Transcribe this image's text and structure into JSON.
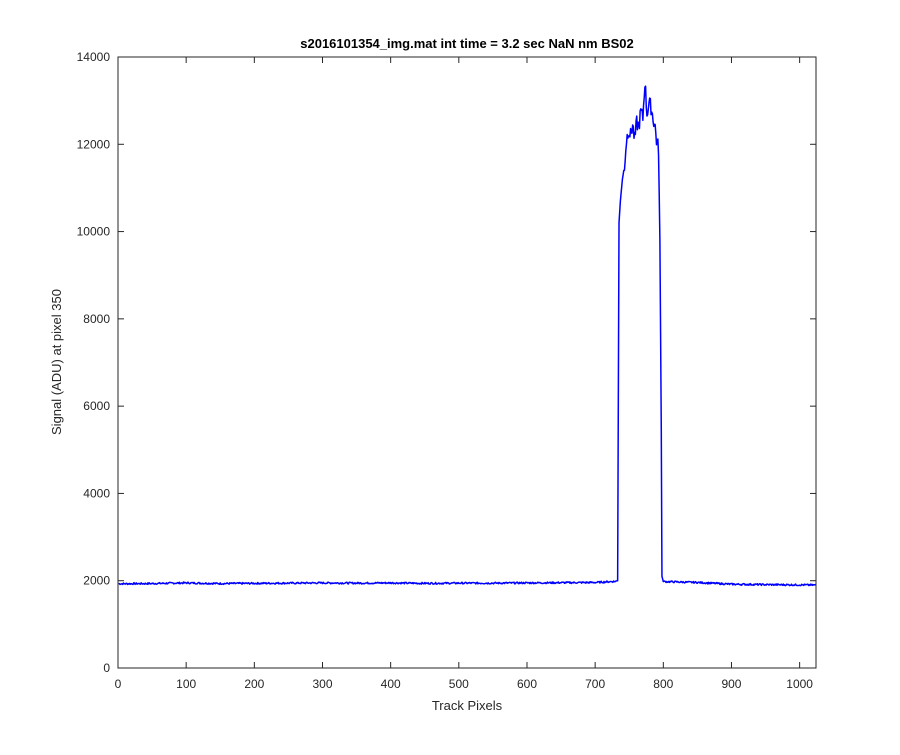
{
  "chart_data": {
    "type": "line",
    "title": "s2016101354_img.mat int time = 3.2 sec  NaN nm BS02",
    "xlabel": "Track Pixels",
    "ylabel": "Signal (ADU) at pixel 350",
    "xlim": [
      0,
      1024
    ],
    "ylim": [
      0,
      14000
    ],
    "xticks": [
      0,
      100,
      200,
      300,
      400,
      500,
      600,
      700,
      800,
      900,
      1000
    ],
    "yticks": [
      0,
      2000,
      4000,
      6000,
      8000,
      10000,
      12000,
      14000
    ],
    "grid": false,
    "series": [
      {
        "color": "#0000ff",
        "x": [
          1,
          50,
          100,
          150,
          200,
          250,
          300,
          350,
          400,
          450,
          500,
          550,
          600,
          650,
          700,
          730,
          733,
          735,
          737,
          740,
          743,
          746,
          749,
          752,
          755,
          758,
          761,
          764,
          767,
          770,
          773,
          776,
          779,
          782,
          785,
          788,
          790,
          793,
          795,
          797,
          798,
          800,
          850,
          900,
          950,
          1000,
          1024
        ],
        "y": [
          1930,
          1935,
          1950,
          1935,
          1940,
          1945,
          1950,
          1945,
          1950,
          1940,
          1945,
          1945,
          1950,
          1955,
          1960,
          1985,
          2000,
          10200,
          10700,
          11200,
          11500,
          12100,
          12350,
          12200,
          12450,
          12100,
          12500,
          12400,
          12750,
          12600,
          13450,
          12700,
          12950,
          12850,
          12600,
          12400,
          12100,
          11900,
          9800,
          5500,
          2100,
          1980,
          1960,
          1920,
          1910,
          1905,
          1900
        ]
      }
    ]
  }
}
